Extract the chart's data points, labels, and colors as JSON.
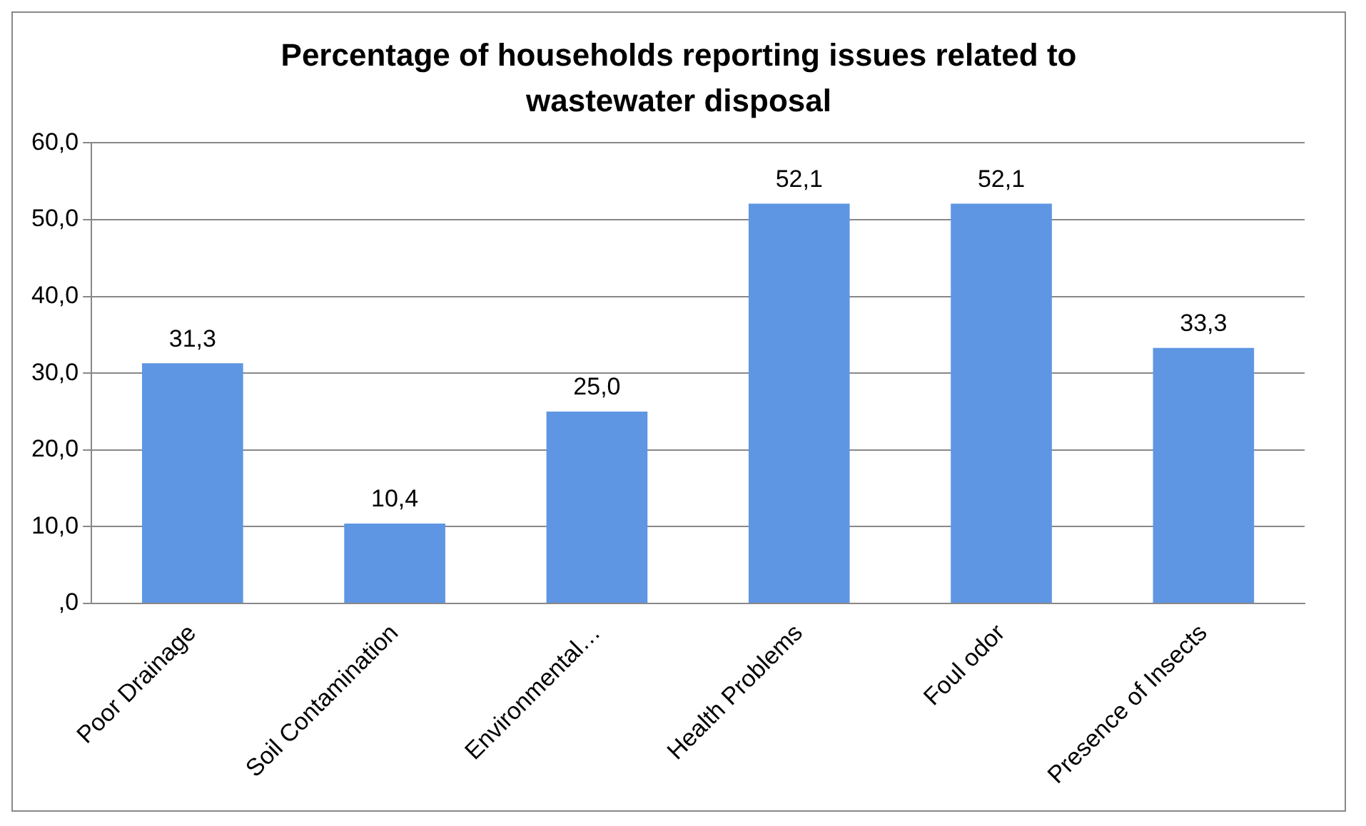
{
  "chart_data": {
    "type": "bar",
    "title": "Percentage of households  reporting issues related to wastewater disposal",
    "categories": [
      "Poor Drainage",
      "Soil Contamination",
      "Environmental…",
      "Health Problems",
      "Foul odor",
      "Presence of Insects"
    ],
    "values": [
      31.3,
      10.4,
      25.0,
      52.1,
      52.1,
      33.3
    ],
    "value_labels": [
      "31,3",
      "10,4",
      "25,0",
      "52,1",
      "52,1",
      "33,3"
    ],
    "color": "#5f96e3",
    "ylim": [
      0,
      60
    ],
    "yticks": [
      {
        "value": 0,
        "label": ",0"
      },
      {
        "value": 10,
        "label": "10,0"
      },
      {
        "value": 20,
        "label": "20,0"
      },
      {
        "value": 30,
        "label": "30,0"
      },
      {
        "value": 40,
        "label": "40,0"
      },
      {
        "value": 50,
        "label": "50,0"
      },
      {
        "value": 60,
        "label": "60,0"
      }
    ],
    "grid": "y"
  }
}
